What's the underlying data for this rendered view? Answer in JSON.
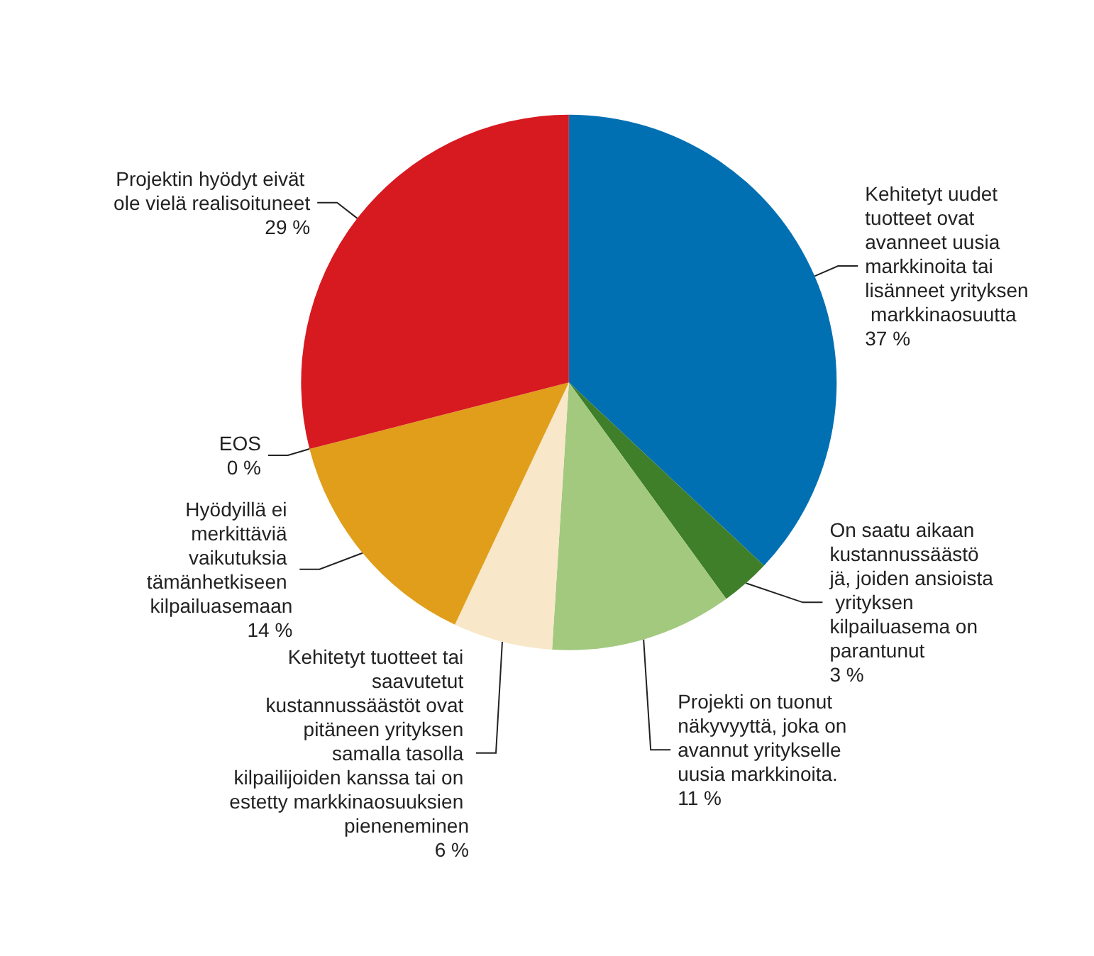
{
  "chart_data": {
    "type": "pie",
    "categories": [
      "Kehitetyt uudet tuotteet ovat avanneet uusia markkinoita tai lisänneet yrityksen markkinaosuutta",
      "On saatu aikaan kustannussäästöjä, joiden ansioista yrityksen kilpailuasema on parantunut",
      "Projekti on tuonut näkyvyyttä, joka on avannut yritykselle uusia markkinoita.",
      "Kehitetyt tuotteet tai saavutetut kustannussäästöt ovat pitäneen yrityksen samalla tasolla kilpailijoiden kanssa tai on estetty markkinaosuuksien pieneneminen",
      "Hyödyillä ei merkittäviä vaikutuksia tämänhetkiseen kilpailuasemaan",
      "EOS",
      "Projektin hyödyt eivät ole vielä realisoituneet"
    ],
    "values": [
      37,
      3,
      11,
      6,
      14,
      0,
      29
    ],
    "value_labels": [
      "37 %",
      "3 %",
      "11 %",
      "6 %",
      "14 %",
      "0 %",
      "29 %"
    ],
    "colors": [
      "#0070b3",
      "#3f7f2a",
      "#a3c97f",
      "#f8e7c8",
      "#e09e1a",
      "#9a9a9a",
      "#d71920"
    ]
  }
}
